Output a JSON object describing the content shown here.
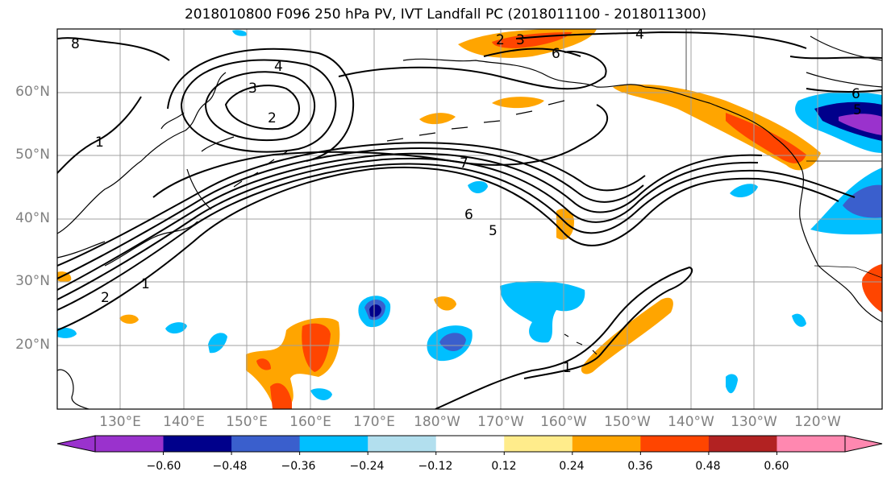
{
  "title": "2018010800 F096 250 hPa PV, IVT Landfall PC (2018011100 - 2018011300)",
  "latitude_labels": [
    "60°N",
    "50°N",
    "40°N",
    "30°N",
    "20°N"
  ],
  "longitude_labels": [
    "130°E",
    "140°E",
    "150°E",
    "160°E",
    "170°E",
    "180°W",
    "170°W",
    "160°W",
    "150°W",
    "140°W",
    "130°W",
    "120°W"
  ],
  "contour_labels": [
    "8",
    "3",
    "4",
    "2",
    "1",
    "7",
    "6",
    "5",
    "2",
    "1",
    "2",
    "3",
    "4",
    "6",
    "6",
    "5",
    "1"
  ],
  "colorbar": {
    "tick_labels": [
      "−0.60",
      "−0.48",
      "−0.36",
      "−0.24",
      "−0.12",
      "0.12",
      "0.24",
      "0.36",
      "0.48",
      "0.60"
    ],
    "colors": [
      "#9a32cd",
      "#00008b",
      "#3a5fcd",
      "#00bfff",
      "#b2dfee",
      "#ffffff",
      "#ffec8b",
      "#ffa500",
      "#ff4500",
      "#b22222",
      "#ff88b0"
    ]
  },
  "style": {
    "neg_colors": [
      "#b2dfee",
      "#00bfff",
      "#3a5fcd",
      "#00008b",
      "#9a32cd"
    ],
    "pos_colors": [
      "#ffec8b",
      "#ffa500",
      "#ff4500",
      "#b22222"
    ],
    "grid_color": "#a0a0a0",
    "axis_label_color": "#808080"
  }
}
